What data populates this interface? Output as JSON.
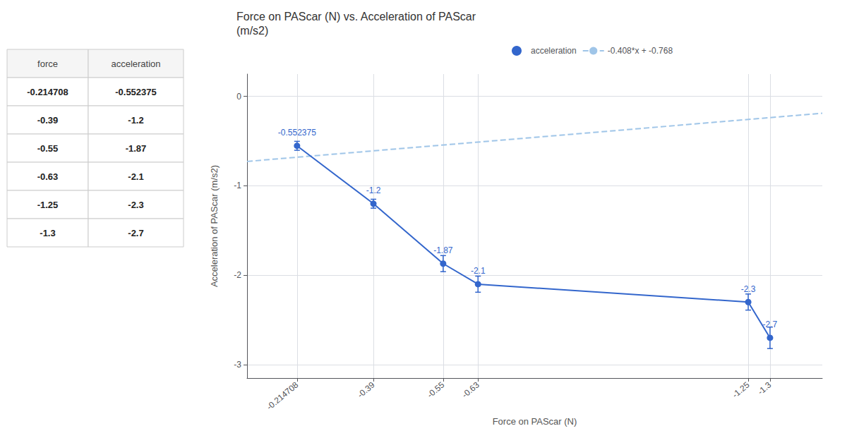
{
  "chart_data": [
    {
      "type": "table",
      "columns": [
        "force",
        "acceleration"
      ],
      "rows": [
        [
          -0.214708,
          -0.552375
        ],
        [
          -0.39,
          -1.2
        ],
        [
          -0.55,
          -1.87
        ],
        [
          -0.63,
          -2.1
        ],
        [
          -1.25,
          -2.3
        ],
        [
          -1.3,
          -2.7
        ]
      ]
    },
    {
      "type": "line",
      "title": "Force on PAScar (N) vs. Acceleration of PAScar\n(m/s2)",
      "x_label": "Force on PAScar (N)",
      "y_label": "Acceleration of PAScar (m/s2)",
      "x": [
        -0.214708,
        -0.39,
        -0.55,
        -0.63,
        -1.25,
        -1.3
      ],
      "series": [
        {
          "name": "acceleration",
          "type": "line",
          "color": "#3366cc",
          "marker": "circle",
          "values": [
            -0.552375,
            -1.2,
            -1.87,
            -2.1,
            -2.3,
            -2.7
          ],
          "error": [
            0.05,
            0.05,
            0.09,
            0.09,
            0.09,
            0.12
          ],
          "data_labels": true
        },
        {
          "name": "-0.408*x + -0.768",
          "type": "line",
          "color": "#9fc5e8",
          "line_style": "dashed",
          "x": [
            -0.1,
            -1.42
          ],
          "values": [
            -0.7272,
            -0.18864
          ]
        }
      ],
      "xlim": [
        -0.1,
        -1.42
      ],
      "xticks": [
        -0.214708,
        -0.39,
        -0.55,
        -0.63,
        -1.25,
        -1.3
      ],
      "ylim": [
        -3.15,
        0.25
      ],
      "yticks": [
        0,
        -1,
        -2,
        -3
      ],
      "grid": true,
      "legend": "top"
    }
  ]
}
